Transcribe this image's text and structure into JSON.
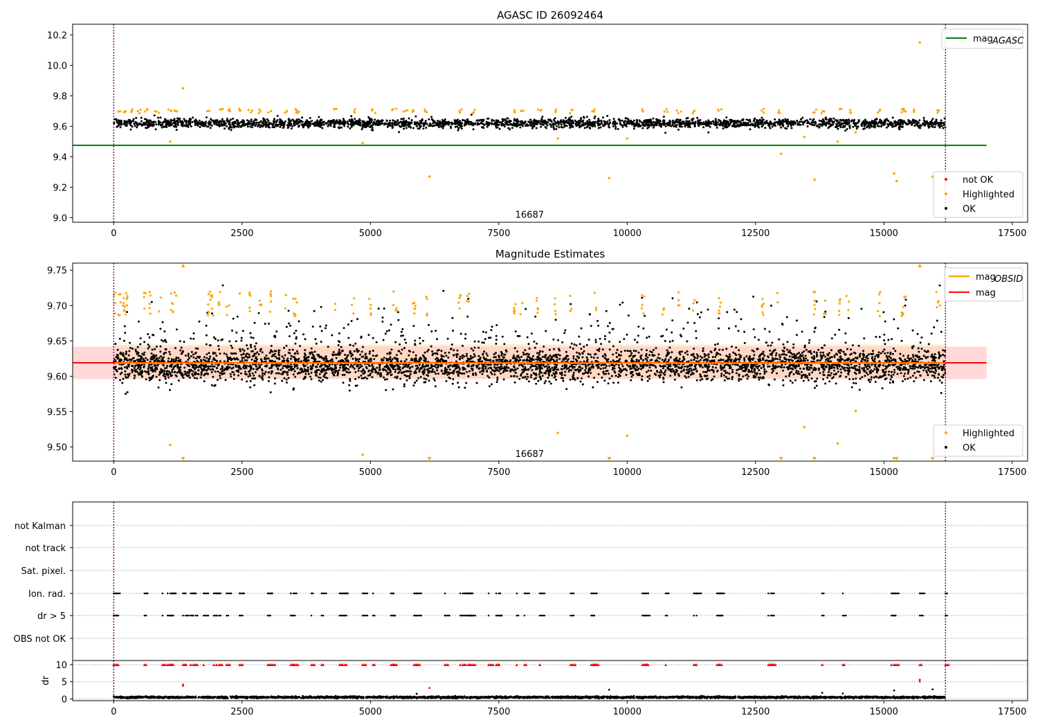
{
  "colors": {
    "ok": "#000000",
    "highlighted": "#ffa500",
    "not_ok": "#ff0000",
    "mag_agasc_line": "#008000",
    "mag_line": "#ff0000",
    "mag_obsid_line": "#ffa500",
    "band_mag": "#ffc0c0",
    "band_obsid": "#ffd8b0",
    "obs_boundary": "#800080",
    "grid": "#b0b0b0"
  },
  "chart_data": [
    {
      "type": "scatter",
      "title": "AGASC ID 26092464",
      "xlim": [
        -800,
        17800
      ],
      "ylim": [
        8.97,
        10.27
      ],
      "x_ticks": [
        "0",
        "2500",
        "5000",
        "7500",
        "10000",
        "12500",
        "15000",
        "17500"
      ],
      "y_ticks": [
        "9.0",
        "9.2",
        "9.4",
        "9.6",
        "9.8",
        "10.0",
        "10.2"
      ],
      "annotation": {
        "text": "16687",
        "x": 8100,
        "y": 9.0
      },
      "obs_boundaries": [
        0,
        16200
      ],
      "lines": [
        {
          "name": "mag_AGASC",
          "label": "mag",
          "subscript": "AGASC",
          "y": 9.475,
          "x_range": [
            -800,
            17000
          ]
        }
      ],
      "ok_series": {
        "name": "OK",
        "x_range": [
          0,
          16200
        ],
        "mean": 9.62,
        "spread": 0.03
      },
      "highlighted": {
        "name": "Highlighted",
        "x": [
          1100,
          1350,
          4850,
          6150,
          8650,
          9650,
          10000,
          13000,
          13450,
          13650,
          14100,
          14450,
          15200,
          15250,
          15700,
          15950
        ],
        "y": [
          9.5,
          9.85,
          9.49,
          9.27,
          9.52,
          9.26,
          9.52,
          9.42,
          9.53,
          9.25,
          9.5,
          9.56,
          9.29,
          9.24,
          10.15,
          9.27
        ]
      },
      "not_ok": {
        "name": "not OK",
        "x": [],
        "y": []
      },
      "legends": [
        {
          "position": "upper-right",
          "entries": [
            {
              "label": "mag",
              "subscript": "AGASC",
              "kind": "line",
              "color_key": "mag_agasc_line"
            }
          ]
        },
        {
          "position": "lower-right",
          "entries": [
            {
              "label": "not OK",
              "kind": "point",
              "color_key": "not_ok"
            },
            {
              "label": "Highlighted",
              "kind": "point",
              "color_key": "highlighted"
            },
            {
              "label": "OK",
              "kind": "point",
              "color_key": "ok"
            }
          ]
        }
      ]
    },
    {
      "type": "scatter",
      "title": "Magnitude Estimates",
      "xlim": [
        -800,
        17800
      ],
      "ylim": [
        9.48,
        9.76
      ],
      "x_ticks": [
        "0",
        "2500",
        "5000",
        "7500",
        "10000",
        "12500",
        "15000",
        "17500"
      ],
      "y_ticks": [
        "9.50",
        "9.55",
        "9.60",
        "9.65",
        "9.70",
        "9.75"
      ],
      "annotation": {
        "text": "16687",
        "x": 8100,
        "y": 9.49
      },
      "obs_boundaries": [
        0,
        16200
      ],
      "lines": [
        {
          "name": "mag_OBSID",
          "label": "mag",
          "subscript": "OBSID",
          "y": 9.6195,
          "band": [
            9.597,
            9.645
          ],
          "x_range": [
            -800,
            16200
          ]
        },
        {
          "name": "mag",
          "label": "mag",
          "y": 9.619,
          "band": [
            9.596,
            9.642
          ],
          "x_range": [
            -800,
            17000
          ]
        }
      ],
      "ok_series": {
        "name": "OK",
        "x_range": [
          0,
          16200
        ],
        "mean": 9.615,
        "spread": 0.022
      },
      "highlighted": {
        "name": "Highlighted",
        "x": [
          1100,
          4850,
          8650,
          10000,
          13450,
          14100,
          14450
        ],
        "y": [
          9.503,
          9.489,
          9.52,
          9.516,
          9.528,
          9.505,
          9.551
        ]
      },
      "clipped_low": [
        1350,
        6150,
        9650,
        13000,
        13650,
        15200,
        15250,
        15950
      ],
      "clipped_high": [
        1350,
        15700
      ],
      "legends": [
        {
          "position": "upper-right",
          "entries": [
            {
              "label": "mag",
              "subscript": "OBSID",
              "kind": "line",
              "color_key": "mag_obsid_line"
            },
            {
              "label": "mag",
              "kind": "line",
              "color_key": "mag_line"
            }
          ]
        },
        {
          "position": "lower-right",
          "entries": [
            {
              "label": "Highlighted",
              "kind": "point",
              "color_key": "highlighted"
            },
            {
              "label": "OK",
              "kind": "point",
              "color_key": "ok"
            }
          ]
        }
      ]
    },
    {
      "type": "scatter",
      "xlim": [
        -800,
        17800
      ],
      "categories": [
        "not Kalman",
        "not track",
        "Sat. pixel.",
        "Ion. rad.",
        "dr > 5",
        "OBS not OK"
      ],
      "flag_times": [
        0,
        30,
        600,
        950,
        1050,
        1100,
        1150,
        1350,
        1400,
        1500,
        1550,
        1600,
        1750,
        1950,
        2000,
        2050,
        2200,
        2450,
        3000,
        3050,
        3450,
        3500,
        3850,
        4050,
        4400,
        4450,
        4500,
        4850,
        5050,
        5400,
        5450,
        5850,
        5900,
        6450,
        6750,
        6800,
        6850,
        6900,
        6950,
        7300,
        7450,
        7500,
        7850,
        8000,
        8300,
        8900,
        9300,
        9350,
        10300,
        10350,
        10750,
        11300,
        11350,
        11750,
        11800,
        12750,
        12800,
        13800,
        14200,
        15150,
        15200,
        15700,
        16200
      ],
      "ion_rad_times": "flag_times",
      "dr_gt_5_times": "flag_times"
    },
    {
      "type": "scatter",
      "xlim": [
        -800,
        17800
      ],
      "ylim": [
        -0.5,
        11.2
      ],
      "ylabel": "dr",
      "x_ticks": [
        "0",
        "2500",
        "5000",
        "7500",
        "10000",
        "12500",
        "15000",
        "17500"
      ],
      "y_ticks": [
        "0",
        "5",
        "10"
      ],
      "ok_series": {
        "name": "OK",
        "x_range": [
          0,
          16200
        ],
        "mean": 0.5,
        "spread": 0.25
      },
      "not_ok_clipped_y": 10,
      "not_ok_extra": {
        "x": [
          1350,
          1350,
          6150,
          15700,
          15700
        ],
        "y": [
          3.8,
          4.2,
          3.2,
          5.1,
          5.6
        ]
      },
      "outliers_ok": {
        "x": [
          5900,
          9650,
          15200,
          15950,
          13800,
          14200
        ],
        "y": [
          1.5,
          2.7,
          2.5,
          2.8,
          1.8,
          1.6
        ]
      }
    }
  ]
}
